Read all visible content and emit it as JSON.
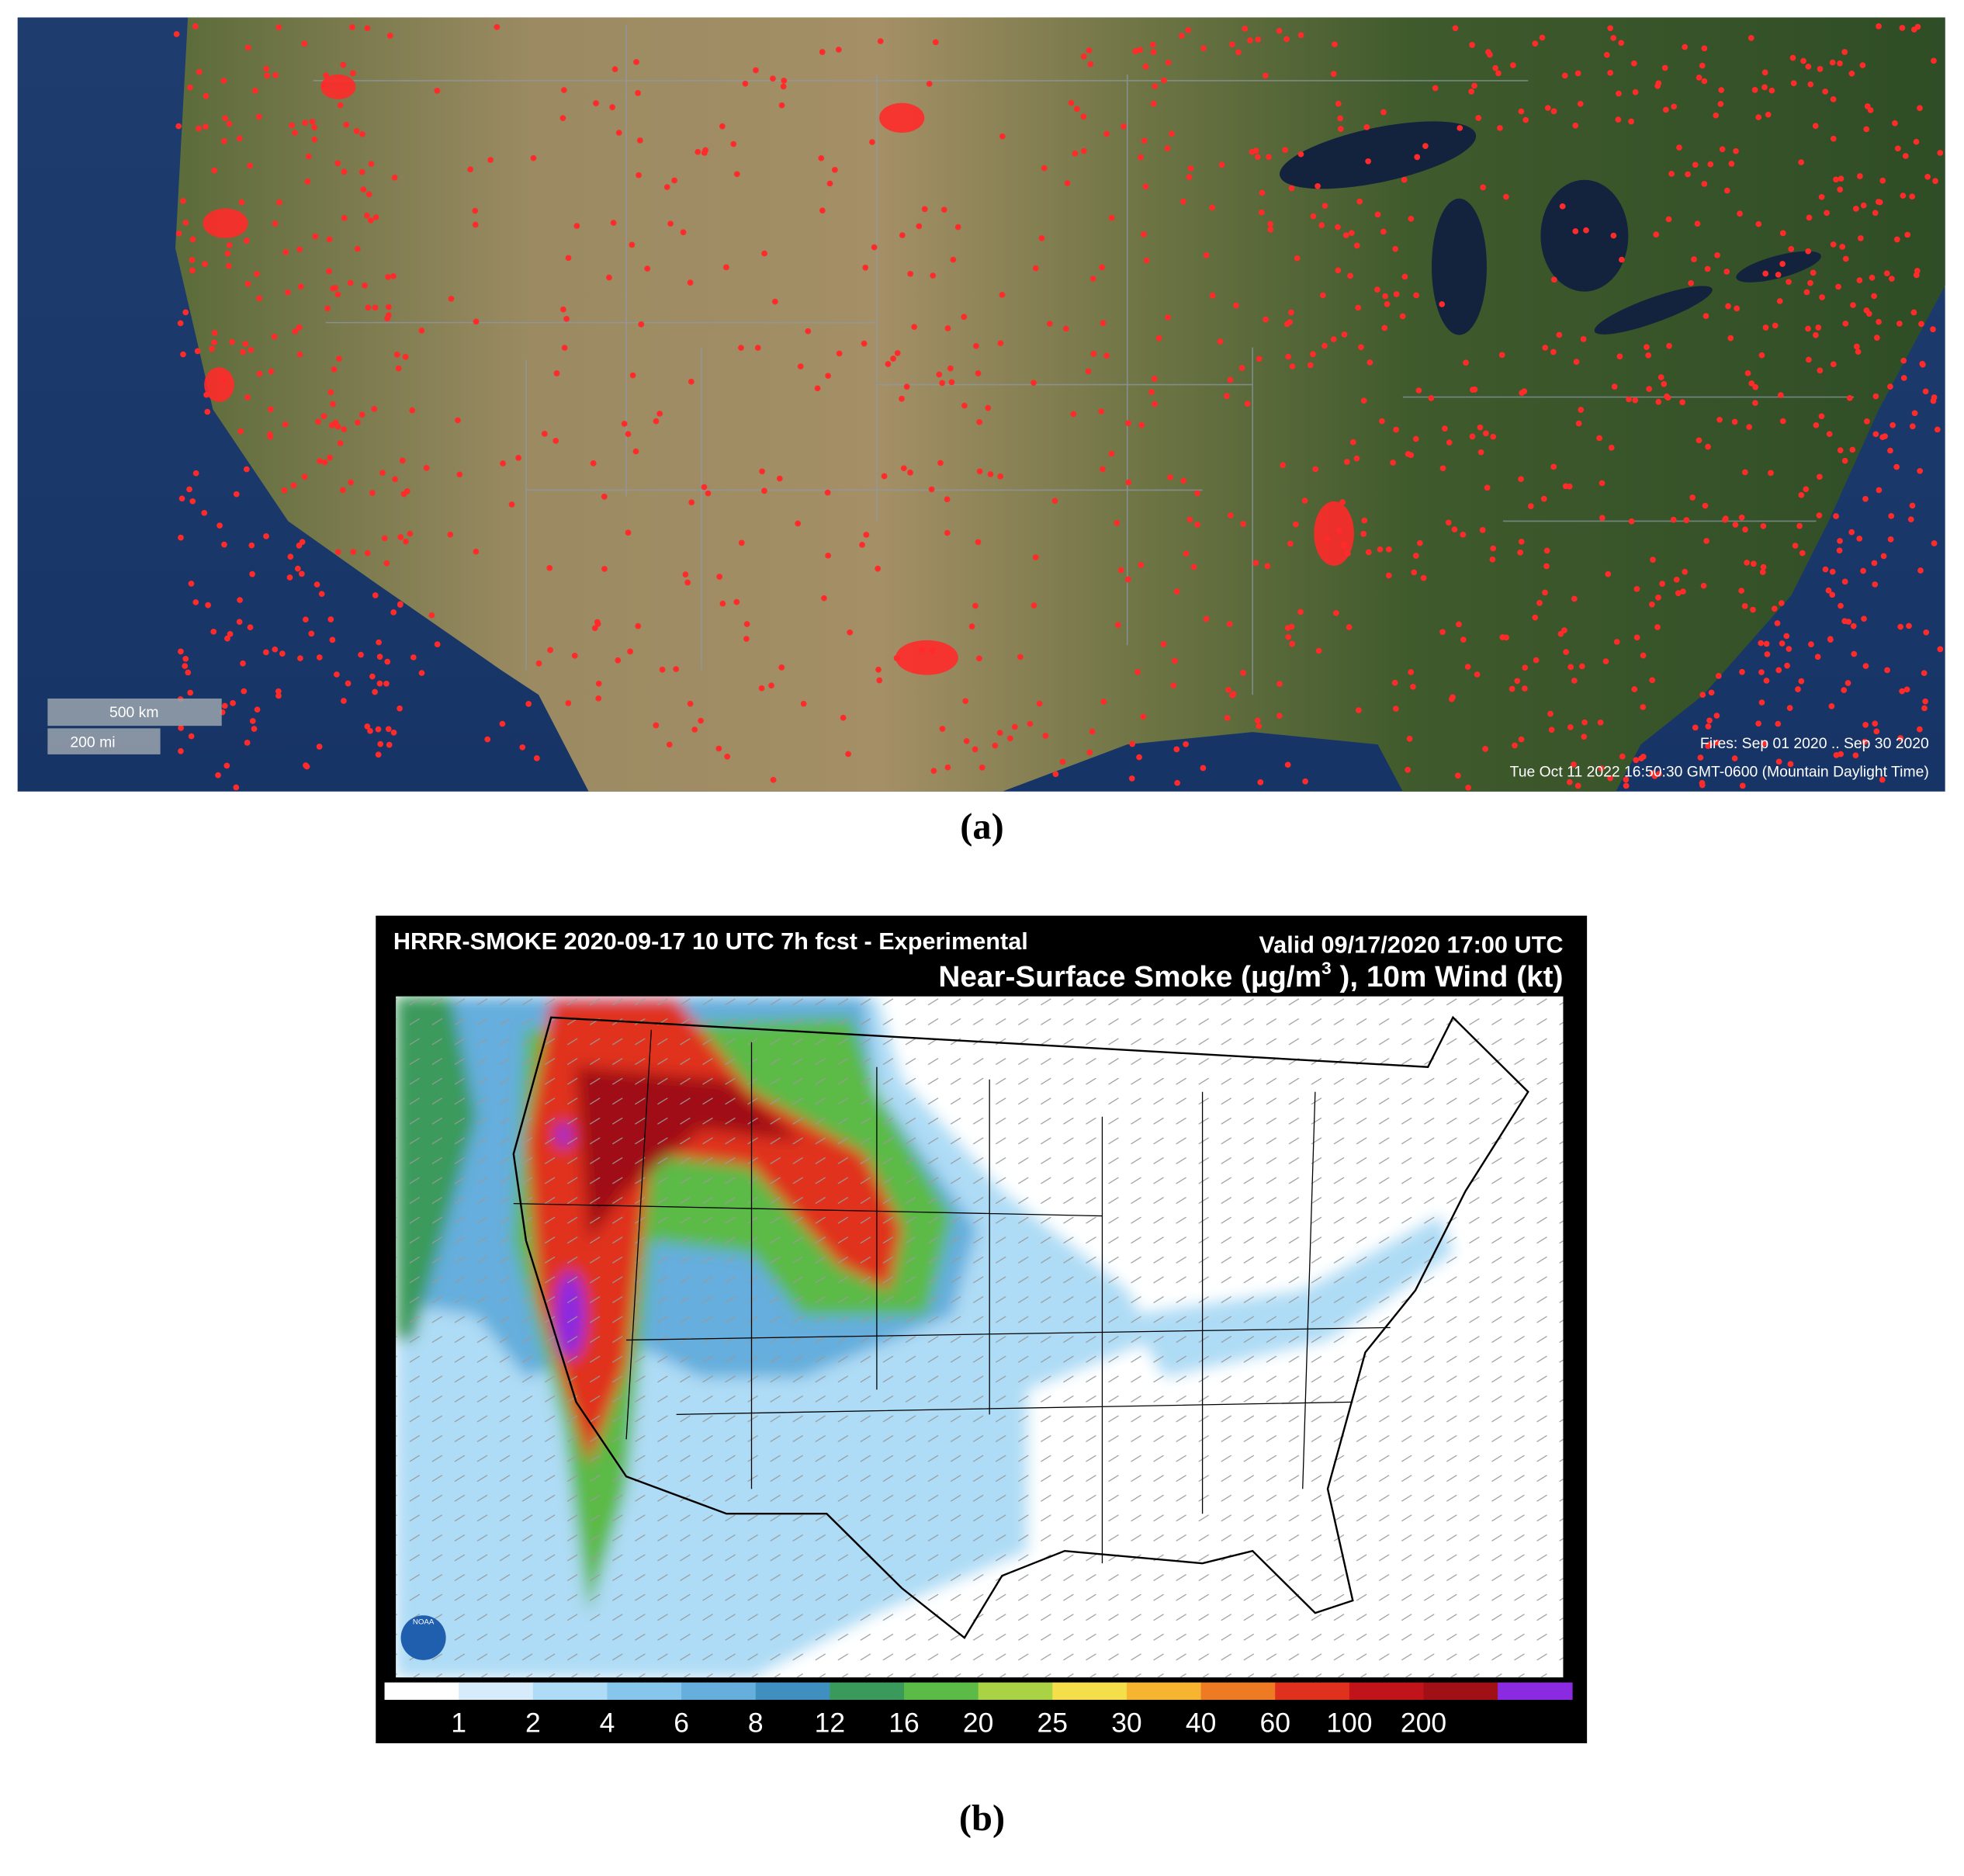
{
  "panels": [
    {
      "scale_km": "500 km",
      "scale_mi": "200 mi",
      "fires_range": "Fires: Sep 01 2020 .. Sep 30 2020",
      "timestamp": "Tue Oct 11 2022 16:50:30 GMT-0600 (Mountain Daylight Time)",
      "caption": "(a)"
    },
    {
      "title_left": "HRRR-SMOKE 2020-09-17 10 UTC 7h fcst - Experimental",
      "valid": "Valid 09/17/2020 17:00 UTC",
      "title_main": "Near-Surface Smoke (µg/m",
      "title_sup": "3",
      "title_end": " ), 10m Wind (kt)",
      "logo": "NOAA",
      "colorbar": {
        "colors": [
          "#ffffff",
          "#d6ecfa",
          "#aedbf5",
          "#86c5ec",
          "#65aedd",
          "#3f8fc0",
          "#3a9a5c",
          "#5cba47",
          "#a9d344",
          "#f4df4a",
          "#f7b431",
          "#ef7a24",
          "#e0311f",
          "#c0131a",
          "#a01016",
          "#8a2be2"
        ],
        "ticks": [
          1,
          2,
          4,
          6,
          8,
          12,
          16,
          20,
          25,
          30,
          40,
          60,
          100,
          200
        ]
      },
      "caption": "(b)"
    }
  ]
}
